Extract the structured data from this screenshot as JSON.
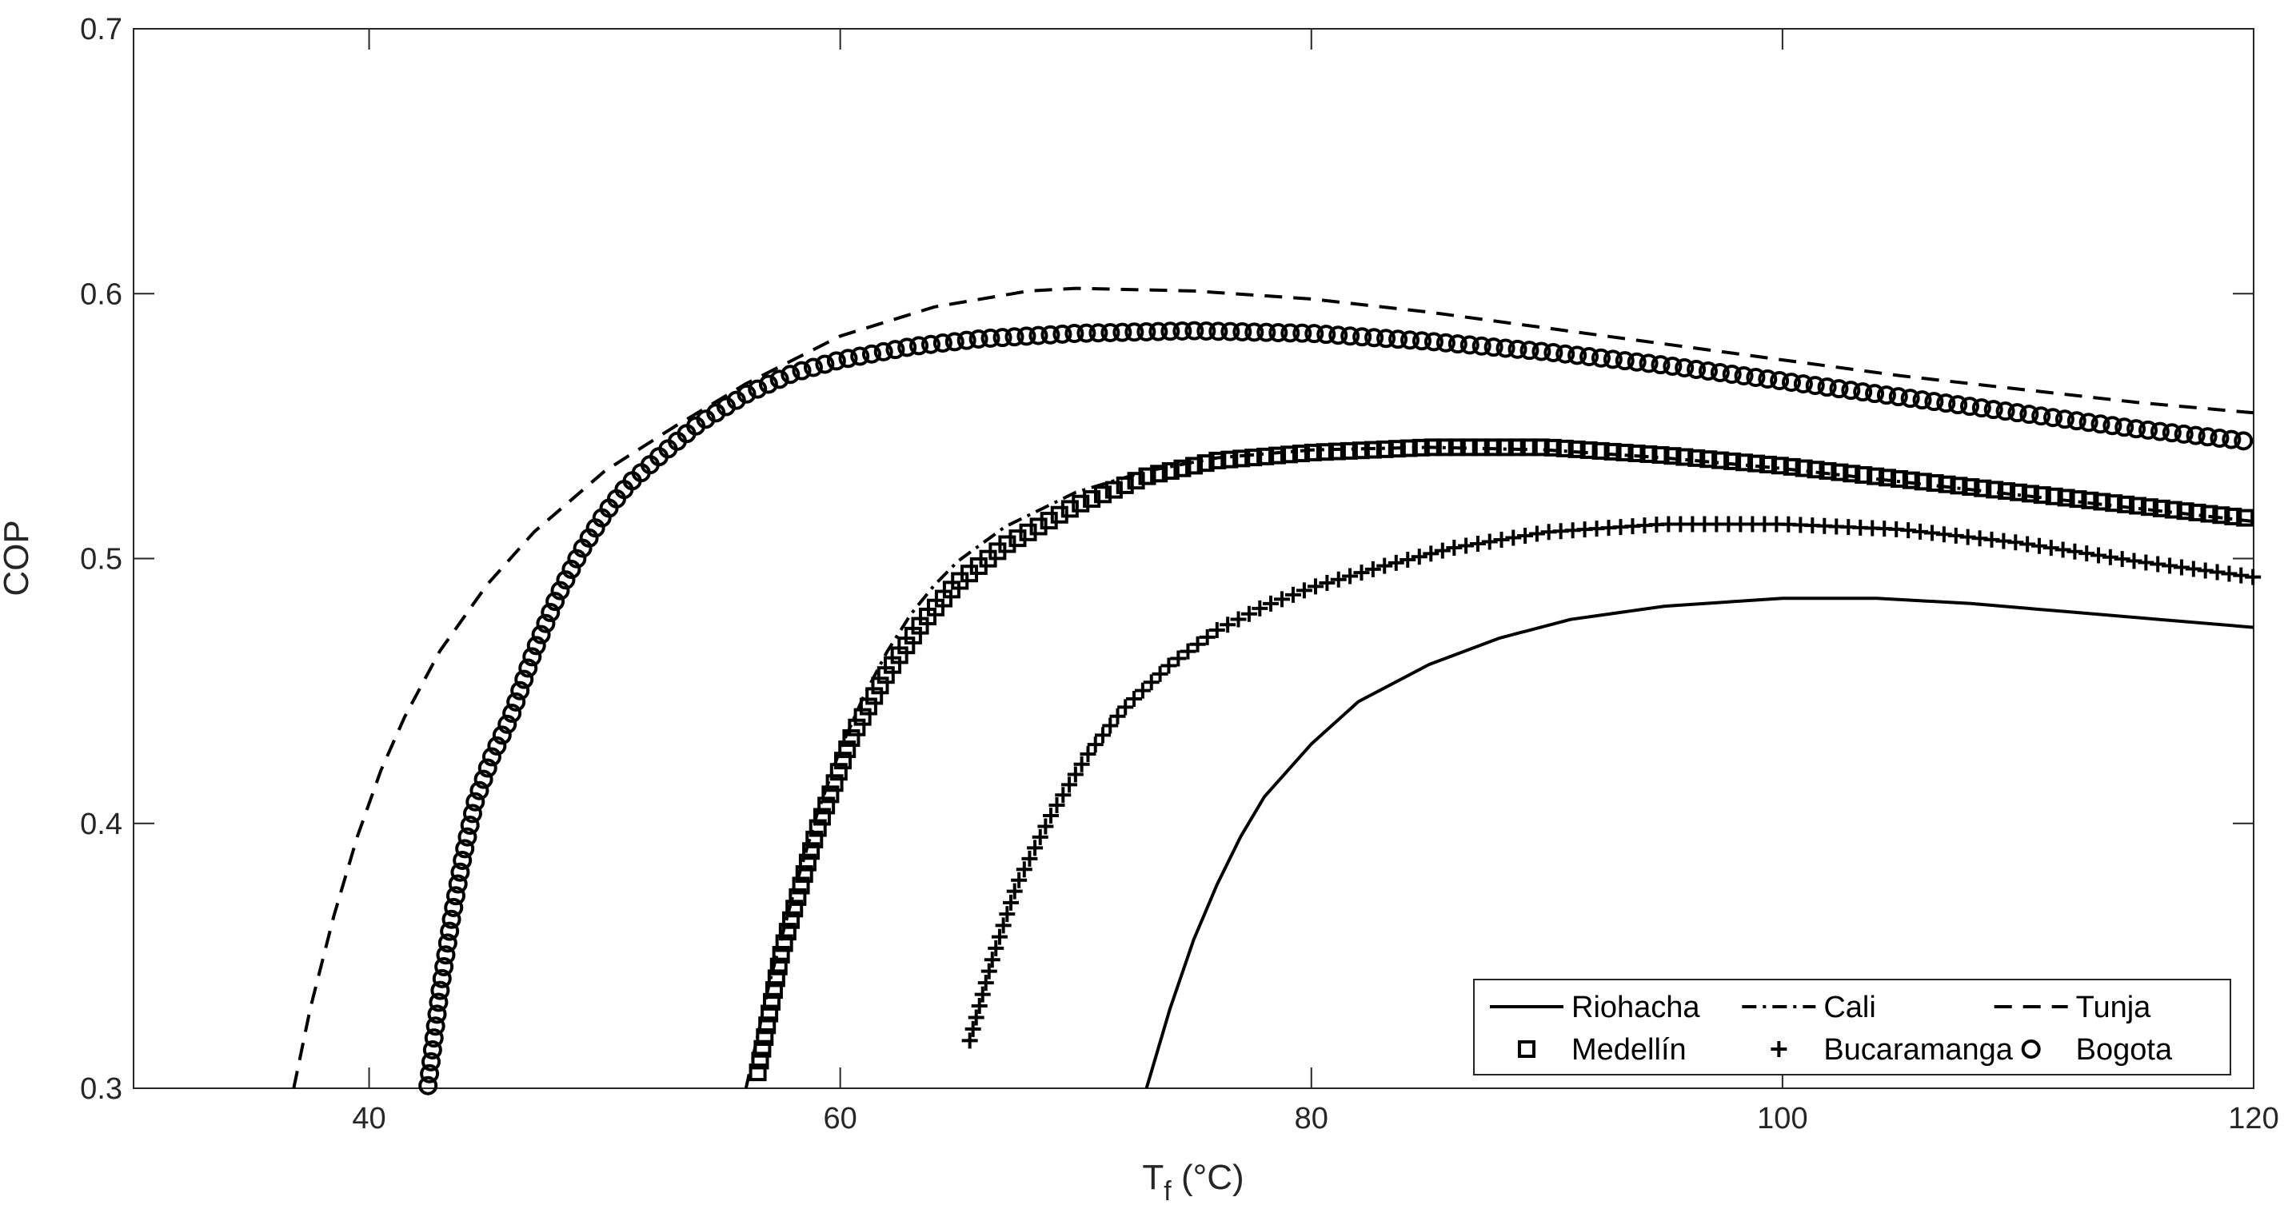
{
  "chart_data": {
    "type": "line",
    "title": "",
    "xlabel_main": "T",
    "xlabel_sub": "f",
    "xlabel_unit": " (°C)",
    "ylabel": "COP",
    "xlim": [
      30,
      120
    ],
    "ylim": [
      0.3,
      0.7
    ],
    "xticks": [
      40,
      60,
      80,
      100,
      120
    ],
    "yticks": [
      0.3,
      0.4,
      0.5,
      0.6,
      0.7
    ],
    "ytick_labels": [
      "0.3",
      "0.4",
      "0.5",
      "0.6",
      "0.7"
    ],
    "grid": false,
    "legend_position": "bottom-right",
    "series": [
      {
        "name": "Riohacha",
        "style": "solid",
        "marker": "none",
        "x": [
          73,
          74,
          75,
          76,
          77,
          78,
          80,
          82,
          85,
          88,
          91,
          95,
          100,
          104,
          108,
          112,
          116,
          120
        ],
        "y": [
          0.3,
          0.33,
          0.356,
          0.377,
          0.395,
          0.41,
          0.43,
          0.446,
          0.46,
          0.47,
          0.477,
          0.482,
          0.485,
          0.485,
          0.483,
          0.48,
          0.477,
          0.474
        ]
      },
      {
        "name": "Cali",
        "style": "dashdot",
        "marker": "none",
        "x": [
          56,
          57,
          58,
          59,
          60,
          61,
          62,
          63,
          64,
          65,
          67,
          70,
          73,
          76,
          80,
          85,
          90,
          95,
          100,
          105,
          110,
          115,
          120
        ],
        "y": [
          0.3,
          0.34,
          0.373,
          0.403,
          0.428,
          0.448,
          0.465,
          0.479,
          0.49,
          0.499,
          0.512,
          0.525,
          0.533,
          0.538,
          0.541,
          0.542,
          0.541,
          0.538,
          0.534,
          0.529,
          0.524,
          0.519,
          0.514
        ]
      },
      {
        "name": "Tunja",
        "style": "dashed",
        "marker": "none",
        "x": [
          36.8,
          37.5,
          38.5,
          39.5,
          40.5,
          41.5,
          43,
          45,
          47,
          50,
          53,
          56,
          60,
          64,
          68,
          70,
          75,
          80,
          85,
          90,
          95,
          100,
          105,
          110,
          115,
          120
        ],
        "y": [
          0.3,
          0.33,
          0.365,
          0.395,
          0.42,
          0.44,
          0.465,
          0.49,
          0.51,
          0.533,
          0.55,
          0.566,
          0.584,
          0.595,
          0.601,
          0.602,
          0.601,
          0.598,
          0.593,
          0.587,
          0.581,
          0.575,
          0.569,
          0.564,
          0.559,
          0.555
        ]
      },
      {
        "name": "Medellín",
        "style": "none",
        "marker": "square",
        "x": [
          56.5,
          57.5,
          59,
          60.5,
          62,
          63.5,
          65,
          67,
          70,
          73,
          76,
          80,
          85,
          90,
          95,
          100,
          105,
          110,
          115,
          120
        ],
        "y": [
          0.306,
          0.351,
          0.397,
          0.433,
          0.457,
          0.476,
          0.491,
          0.505,
          0.52,
          0.531,
          0.537,
          0.54,
          0.542,
          0.542,
          0.539,
          0.535,
          0.53,
          0.525,
          0.52,
          0.515
        ]
      },
      {
        "name": "Bucaramanga",
        "style": "none",
        "marker": "plus",
        "x": [
          65.5,
          66.5,
          67.5,
          69,
          70.5,
          72,
          74,
          76,
          78,
          80,
          83,
          86,
          90,
          95,
          100,
          105,
          110,
          115,
          120
        ],
        "y": [
          0.318,
          0.35,
          0.377,
          0.404,
          0.426,
          0.443,
          0.46,
          0.473,
          0.482,
          0.489,
          0.497,
          0.504,
          0.51,
          0.513,
          0.513,
          0.511,
          0.506,
          0.499,
          0.493
        ]
      },
      {
        "name": "Bogota",
        "style": "none",
        "marker": "circle",
        "x": [
          42.5,
          43,
          43.5,
          44,
          44.5,
          45.2,
          46,
          47,
          48,
          49,
          50,
          51,
          52.5,
          54,
          56,
          58,
          60,
          63,
          66,
          70,
          75,
          80,
          85,
          90,
          95,
          100,
          105,
          110,
          115,
          120
        ],
        "y": [
          0.301,
          0.336,
          0.364,
          0.388,
          0.408,
          0.425,
          0.44,
          0.465,
          0.486,
          0.503,
          0.517,
          0.528,
          0.54,
          0.551,
          0.562,
          0.57,
          0.575,
          0.58,
          0.583,
          0.585,
          0.586,
          0.585,
          0.582,
          0.578,
          0.573,
          0.567,
          0.561,
          0.555,
          0.549,
          0.544
        ]
      }
    ]
  }
}
